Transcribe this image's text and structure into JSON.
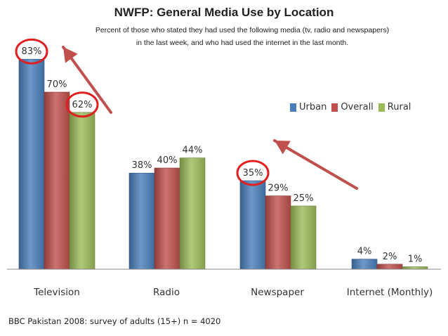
{
  "chart_data": {
    "type": "bar",
    "title": "NWFP: General Media Use by Location",
    "subtitle_lines": [
      "Percent of those who stated they had used the following media (tv, radio and newspapers)",
      "in the last week, and who had used the internet in the last month."
    ],
    "categories": [
      "Television",
      "Radio",
      "Newspaper",
      "Internet (Monthly)"
    ],
    "series": [
      {
        "name": "Urban",
        "values": [
          83,
          38,
          35,
          4
        ],
        "labels": [
          "83%",
          "38%",
          "35%",
          "4%"
        ],
        "color": "#4a7ebb"
      },
      {
        "name": "Overall",
        "values": [
          70,
          40,
          29,
          2
        ],
        "labels": [
          "70%",
          "40%",
          "29%",
          "2%"
        ],
        "color": "#c0504d"
      },
      {
        "name": "Rural",
        "values": [
          62,
          44,
          25,
          1
        ],
        "labels": [
          "62%",
          "44%",
          "25%",
          "1%"
        ],
        "color": "#9bbb59"
      }
    ],
    "ylim": [
      0,
      100
    ],
    "legend_position": "right",
    "grid": false,
    "source": "BBC Pakistan 2008: survey of adults (15+) n = 4020",
    "highlight_colors": {
      "circle": "#e02020",
      "arrow": "#c0504d"
    }
  }
}
